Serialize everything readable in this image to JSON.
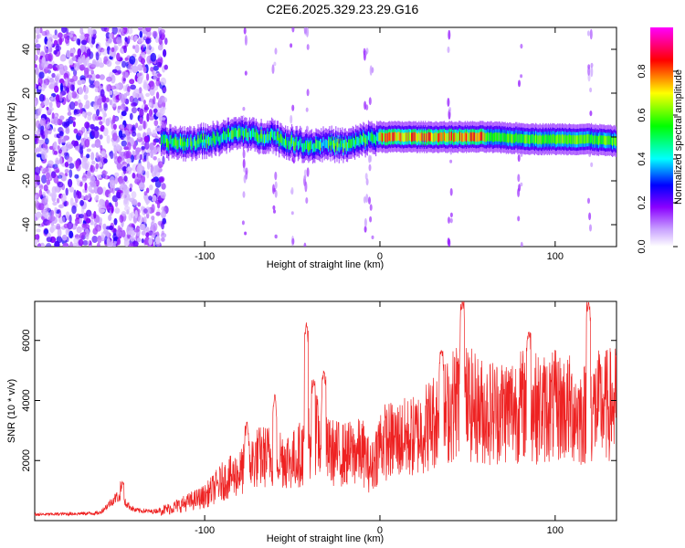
{
  "title": "C2E6.2025.329.23.29.G16",
  "chart_data": [
    {
      "type": "heatmap",
      "xlabel": "Height of straight line (km)",
      "ylabel": "Frequency (Hz)",
      "xlim": [
        -197,
        135
      ],
      "ylim": [
        -50,
        50
      ],
      "xticks": [
        -100,
        0,
        100
      ],
      "yticks": [
        -40,
        -20,
        0,
        20,
        40
      ],
      "ridge": {
        "x": [
          -125,
          -110,
          -95,
          -85,
          -78,
          -70,
          -62,
          -55,
          -48,
          -40,
          -30,
          -20,
          -12,
          -5,
          -2,
          0,
          10,
          30,
          60,
          90,
          120,
          135
        ],
        "y": [
          -2,
          -3,
          -1,
          1,
          2,
          0,
          1,
          -2,
          -3,
          -4,
          -3,
          -4,
          -2,
          0,
          -1,
          0,
          0,
          0,
          0,
          -1,
          -1,
          -2
        ]
      },
      "colorbar": {
        "label": "Normalized spectral amplitude",
        "range": [
          0.0,
          1.0
        ],
        "ticks": [
          0.0,
          0.2,
          0.4,
          0.6,
          0.8
        ],
        "tick_labels": [
          "0.0",
          "0.2",
          "0.4",
          "0.6",
          "0.8"
        ],
        "colors": [
          "#ffffff",
          "#8a00ff",
          "#0000ff",
          "#00ffff",
          "#00ff00",
          "#ffff00",
          "#ff0000",
          "#ff00ff"
        ]
      }
    },
    {
      "type": "line",
      "xlabel": "Height of straight line (km)",
      "ylabel": "SNR (10 * v/v)",
      "xlim": [
        -197,
        135
      ],
      "ylim": [
        0,
        7300
      ],
      "xticks": [
        -100,
        0,
        100
      ],
      "yticks": [
        2000,
        4000,
        6000
      ],
      "color": "#ee2222",
      "envelope": {
        "x": [
          -197,
          -160,
          -150,
          -140,
          -130,
          -120,
          -100,
          -90,
          -80,
          -70,
          -60,
          -50,
          -42,
          -38,
          -30,
          -20,
          -10,
          -5,
          0,
          10,
          20,
          30,
          40,
          45,
          50,
          60,
          70,
          80,
          85,
          90,
          100,
          110,
          115,
          120,
          125,
          135
        ],
        "y": [
          200,
          250,
          800,
          350,
          300,
          400,
          800,
          1300,
          1600,
          2100,
          2200,
          2000,
          2400,
          3000,
          2300,
          2200,
          2300,
          1700,
          2600,
          2700,
          2800,
          3300,
          3700,
          4200,
          3900,
          3600,
          3700,
          3800,
          4000,
          3700,
          3800,
          3700,
          3500,
          3700,
          3800,
          3900
        ]
      },
      "spikes": [
        {
          "x": -147,
          "y": 1300
        },
        {
          "x": -76,
          "y": 3300
        },
        {
          "x": -60,
          "y": 4200
        },
        {
          "x": -42,
          "y": 6600
        },
        {
          "x": -38,
          "y": 4700
        },
        {
          "x": -32,
          "y": 5000
        },
        {
          "x": 35,
          "y": 5700
        },
        {
          "x": 47,
          "y": 7300
        },
        {
          "x": 85,
          "y": 6300
        },
        {
          "x": 119,
          "y": 7300
        }
      ]
    }
  ]
}
